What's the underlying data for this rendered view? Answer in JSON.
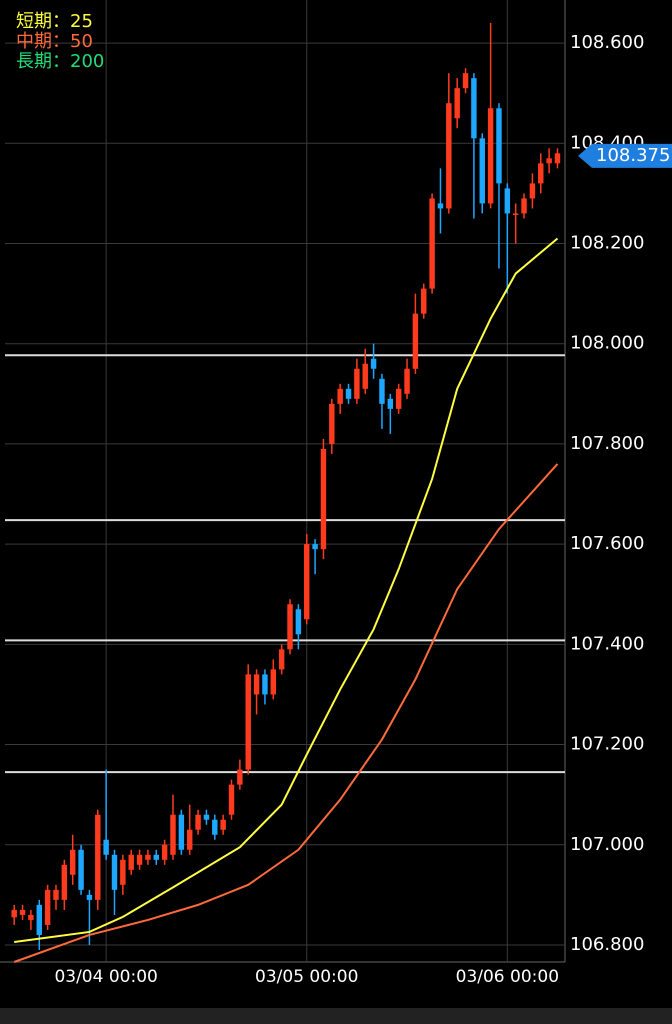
{
  "chart_data": {
    "type": "candlestick",
    "legend": [
      "短期：25",
      "中期：50",
      "長期：200"
    ],
    "legend_colors": [
      "#ffff40",
      "#ff6a3c",
      "#22dd77"
    ],
    "up_color": "#ff3b1f",
    "down_color": "#1ea7ff",
    "x": [
      -11,
      -10,
      -9,
      -8,
      -7,
      -6,
      -5,
      -4,
      -3,
      -2,
      -1,
      0,
      1,
      2,
      3,
      4,
      5,
      6,
      7,
      8,
      9,
      10,
      11,
      12,
      13,
      14,
      15,
      16,
      17,
      18,
      19,
      20,
      21,
      22,
      23,
      24,
      25,
      26,
      27,
      28,
      29,
      30,
      31,
      32,
      33,
      34,
      35,
      36,
      37,
      38,
      39,
      40,
      41,
      42,
      43,
      44,
      45,
      46,
      47,
      48,
      49,
      50,
      51,
      52,
      53,
      54
    ],
    "open": [
      106.855,
      106.86,
      106.85,
      106.88,
      106.84,
      106.89,
      106.89,
      106.94,
      106.99,
      106.9,
      106.89,
      107.01,
      106.98,
      106.92,
      106.95,
      106.96,
      106.97,
      106.98,
      106.97,
      106.98,
      107.06,
      106.99,
      107.03,
      107.06,
      107.05,
      107.03,
      107.06,
      107.12,
      107.15,
      107.3,
      107.34,
      107.3,
      107.35,
      107.39,
      107.47,
      107.45,
      107.6,
      107.59,
      107.8,
      107.88,
      107.91,
      107.89,
      107.91,
      107.97,
      107.93,
      107.89,
      107.87,
      107.9,
      107.95,
      108.06,
      108.11,
      108.28,
      108.27,
      108.45,
      108.51,
      108.53,
      108.41,
      108.28,
      108.47,
      108.31,
      108.26,
      108.26,
      108.29,
      108.32,
      108.36,
      108.36
    ],
    "high": [
      106.88,
      106.88,
      106.87,
      106.89,
      106.92,
      106.92,
      106.97,
      107.02,
      107.0,
      106.91,
      107.07,
      107.15,
      106.99,
      106.98,
      106.99,
      106.99,
      106.99,
      106.99,
      107.01,
      107.1,
      107.07,
      107.08,
      107.07,
      107.07,
      107.06,
      107.06,
      107.13,
      107.17,
      107.36,
      107.35,
      107.35,
      107.37,
      107.4,
      107.49,
      107.48,
      107.62,
      107.61,
      107.81,
      107.89,
      107.92,
      107.92,
      107.97,
      107.99,
      108.0,
      107.94,
      107.9,
      107.92,
      107.97,
      108.1,
      108.12,
      108.3,
      108.35,
      108.54,
      108.53,
      108.55,
      108.54,
      108.42,
      108.64,
      108.48,
      108.32,
      108.28,
      108.3,
      108.34,
      108.38,
      108.39,
      108.39
    ],
    "low": [
      106.84,
      106.85,
      106.83,
      106.79,
      106.83,
      106.87,
      106.87,
      106.92,
      106.9,
      106.8,
      106.87,
      106.97,
      106.86,
      106.9,
      106.94,
      106.95,
      106.96,
      106.96,
      106.96,
      106.97,
      106.98,
      106.98,
      107.02,
      107.04,
      107.01,
      107.02,
      107.05,
      107.11,
      107.14,
      107.26,
      107.28,
      107.29,
      107.34,
      107.38,
      107.39,
      107.44,
      107.54,
      107.57,
      107.78,
      107.86,
      107.88,
      107.88,
      107.9,
      107.93,
      107.83,
      107.82,
      107.86,
      107.89,
      107.94,
      108.05,
      108.1,
      108.22,
      108.26,
      108.43,
      108.5,
      108.25,
      108.26,
      108.27,
      108.15,
      108.1,
      108.2,
      108.25,
      108.27,
      108.3,
      108.34,
      108.35
    ],
    "close": [
      106.87,
      106.87,
      106.86,
      106.82,
      106.91,
      106.91,
      106.96,
      106.99,
      106.91,
      106.89,
      107.06,
      106.98,
      106.91,
      106.97,
      106.98,
      106.98,
      106.98,
      106.97,
      107.0,
      107.06,
      106.99,
      107.03,
      107.06,
      107.05,
      107.02,
      107.05,
      107.12,
      107.15,
      107.34,
      107.34,
      107.3,
      107.35,
      107.39,
      107.48,
      107.42,
      107.6,
      107.59,
      107.79,
      107.88,
      107.91,
      107.89,
      107.95,
      107.96,
      107.95,
      107.88,
      107.87,
      107.91,
      107.95,
      108.06,
      108.11,
      108.29,
      108.27,
      108.48,
      108.51,
      108.54,
      108.41,
      108.28,
      108.47,
      108.32,
      108.26,
      108.26,
      108.29,
      108.32,
      108.36,
      108.37,
      108.38
    ],
    "series": [
      {
        "name": "短期：25",
        "color": "#ffff40",
        "x": [
          -11,
          -2,
          2,
          8,
          16,
          21,
          24,
          28,
          32,
          35,
          39,
          42,
          46,
          49,
          54
        ],
        "values": [
          106.806,
          106.826,
          106.856,
          106.915,
          106.995,
          107.08,
          107.18,
          107.31,
          107.43,
          107.55,
          107.73,
          107.91,
          108.05,
          108.14,
          108.21
        ]
      },
      {
        "name": "中期：50",
        "color": "#ff6a3c",
        "x": [
          -11,
          -2,
          5,
          11,
          17,
          23,
          28,
          33,
          37,
          42,
          47,
          54
        ],
        "values": [
          106.766,
          106.82,
          106.85,
          106.88,
          106.92,
          106.99,
          107.09,
          107.21,
          107.33,
          107.51,
          107.63,
          107.76
        ]
      }
    ],
    "levels": [
      107.977,
      107.648,
      107.408,
      107.145
    ],
    "last_price": {
      "value": 108.375,
      "label": "108.375"
    },
    "xlim": [
      -12.1,
      54.9
    ],
    "ylim": [
      106.766,
      108.686
    ],
    "xticks": [
      {
        "value": 0,
        "label": "03/04 00:00"
      },
      {
        "value": 24,
        "label": "03/05 00:00"
      },
      {
        "value": 48,
        "label": "03/06 00:00"
      }
    ],
    "yticks": [
      {
        "value": 106.8,
        "label": "106.800"
      },
      {
        "value": 107.0,
        "label": "107.000"
      },
      {
        "value": 107.2,
        "label": "107.200"
      },
      {
        "value": 107.4,
        "label": "107.400"
      },
      {
        "value": 107.6,
        "label": "107.600"
      },
      {
        "value": 107.8,
        "label": "107.800"
      },
      {
        "value": 108.0,
        "label": "108.000"
      },
      {
        "value": 108.2,
        "label": "108.200"
      },
      {
        "value": 108.4,
        "label": "108.400"
      },
      {
        "value": 108.6,
        "label": "108.600"
      }
    ],
    "grid": true
  }
}
